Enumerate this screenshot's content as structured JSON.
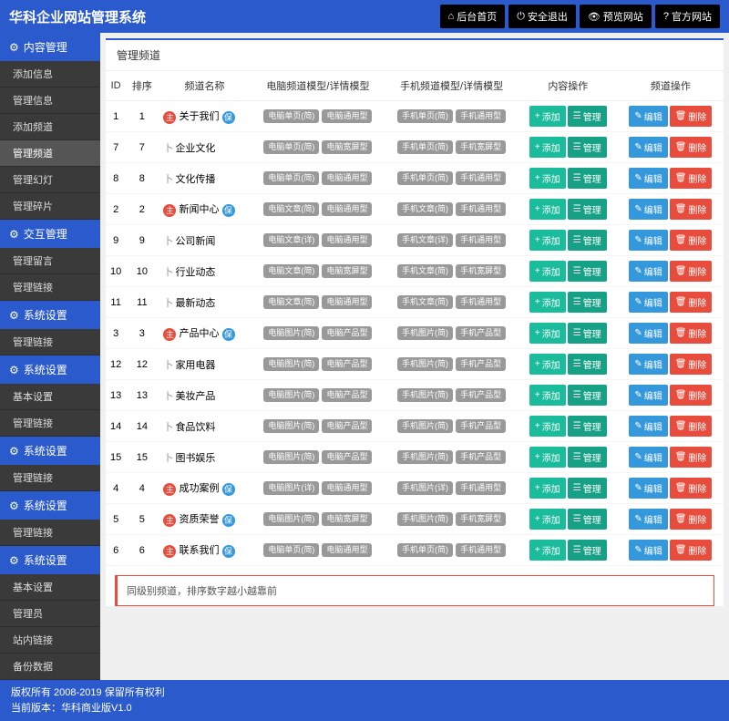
{
  "header": {
    "title": "华科企业网站管理系统",
    "nav": [
      "后台首页",
      "安全退出",
      "预览网站",
      "官方网站"
    ],
    "nav_icons": [
      "⌂",
      "⏻",
      "👁",
      "?"
    ]
  },
  "sidebar": [
    {
      "type": "section",
      "label": "内容管理"
    },
    {
      "type": "item",
      "label": "添加信息"
    },
    {
      "type": "item",
      "label": "管理信息"
    },
    {
      "type": "item",
      "label": "添加频道"
    },
    {
      "type": "item",
      "label": "管理频道",
      "active": true
    },
    {
      "type": "item",
      "label": "管理幻灯"
    },
    {
      "type": "item",
      "label": "管理碎片"
    },
    {
      "type": "section",
      "label": "交互管理"
    },
    {
      "type": "item",
      "label": "管理留言"
    },
    {
      "type": "item",
      "label": "管理链接"
    },
    {
      "type": "section",
      "label": "系统设置"
    },
    {
      "type": "item",
      "label": "管理链接"
    },
    {
      "type": "section",
      "label": "系统设置"
    },
    {
      "type": "item",
      "label": "基本设置"
    },
    {
      "type": "item",
      "label": "管理链接"
    },
    {
      "type": "section",
      "label": "系统设置"
    },
    {
      "type": "item",
      "label": "管理链接"
    },
    {
      "type": "section",
      "label": "系统设置"
    },
    {
      "type": "item",
      "label": "管理链接"
    },
    {
      "type": "section",
      "label": "系统设置"
    },
    {
      "type": "item",
      "label": "基本设置"
    },
    {
      "type": "item",
      "label": "管理员"
    },
    {
      "type": "item",
      "label": "站内链接"
    },
    {
      "type": "item",
      "label": "备份数据"
    }
  ],
  "panel": {
    "title": "管理频道"
  },
  "table": {
    "columns": [
      "ID",
      "排序",
      "频道名称",
      "电脑频道模型/详情模型",
      "手机频道模型/详情模型",
      "内容操作",
      "频道操作"
    ],
    "rows": [
      {
        "id": 1,
        "sort": 1,
        "main": true,
        "name": "关于我们",
        "suffix": true,
        "pc": [
          "电脑单页(简)",
          "电脑通用型"
        ],
        "mb": [
          "手机单页(简)",
          "手机通用型"
        ]
      },
      {
        "id": 7,
        "sort": 7,
        "main": false,
        "name": "企业文化",
        "pc": [
          "电脑单页(简)",
          "电脑宽屏型"
        ],
        "mb": [
          "手机单页(简)",
          "手机宽屏型"
        ]
      },
      {
        "id": 8,
        "sort": 8,
        "main": false,
        "name": "文化传播",
        "pc": [
          "电脑单页(简)",
          "电脑通用型"
        ],
        "mb": [
          "手机单页(简)",
          "手机通用型"
        ]
      },
      {
        "id": 2,
        "sort": 2,
        "main": true,
        "name": "新闻中心",
        "suffix": true,
        "pc": [
          "电脑文章(简)",
          "电脑通用型"
        ],
        "mb": [
          "手机文章(简)",
          "手机通用型"
        ]
      },
      {
        "id": 9,
        "sort": 9,
        "main": false,
        "name": "公司新闻",
        "pc": [
          "电脑文章(详)",
          "电脑通用型"
        ],
        "mb": [
          "手机文章(详)",
          "手机通用型"
        ]
      },
      {
        "id": 10,
        "sort": 10,
        "main": false,
        "name": "行业动态",
        "pc": [
          "电脑文章(简)",
          "电脑宽屏型"
        ],
        "mb": [
          "手机文章(简)",
          "手机宽屏型"
        ]
      },
      {
        "id": 11,
        "sort": 11,
        "main": false,
        "name": "最新动态",
        "pc": [
          "电脑文章(简)",
          "电脑通用型"
        ],
        "mb": [
          "手机文章(简)",
          "手机通用型"
        ]
      },
      {
        "id": 3,
        "sort": 3,
        "main": true,
        "name": "产品中心",
        "suffix": true,
        "pc": [
          "电脑图片(简)",
          "电脑产品型"
        ],
        "mb": [
          "手机图片(简)",
          "手机产品型"
        ]
      },
      {
        "id": 12,
        "sort": 12,
        "main": false,
        "name": "家用电器",
        "pc": [
          "电脑图片(简)",
          "电脑产品型"
        ],
        "mb": [
          "手机图片(简)",
          "手机产品型"
        ]
      },
      {
        "id": 13,
        "sort": 13,
        "main": false,
        "name": "美妆产品",
        "pc": [
          "电脑图片(简)",
          "电脑产品型"
        ],
        "mb": [
          "手机图片(简)",
          "手机产品型"
        ]
      },
      {
        "id": 14,
        "sort": 14,
        "main": false,
        "name": "食品饮料",
        "pc": [
          "电脑图片(简)",
          "电脑产品型"
        ],
        "mb": [
          "手机图片(简)",
          "手机产品型"
        ]
      },
      {
        "id": 15,
        "sort": 15,
        "main": false,
        "name": "图书娱乐",
        "pc": [
          "电脑图片(简)",
          "电脑产品型"
        ],
        "mb": [
          "手机图片(简)",
          "手机产品型"
        ]
      },
      {
        "id": 4,
        "sort": 4,
        "main": true,
        "name": "成功案例",
        "suffix": true,
        "pc": [
          "电脑图片(详)",
          "电脑通用型"
        ],
        "mb": [
          "手机图片(详)",
          "手机通用型"
        ]
      },
      {
        "id": 5,
        "sort": 5,
        "main": true,
        "name": "资质荣誉",
        "suffix": true,
        "pc": [
          "电脑图片(简)",
          "电脑宽屏型"
        ],
        "mb": [
          "手机图片(简)",
          "手机宽屏型"
        ]
      },
      {
        "id": 6,
        "sort": 6,
        "main": true,
        "name": "联系我们",
        "suffix": true,
        "pc": [
          "电脑单页(简)",
          "电脑通用型"
        ],
        "mb": [
          "手机单页(简)",
          "手机通用型"
        ]
      }
    ],
    "actions1": {
      "add": "添加",
      "manage": "管理"
    },
    "actions2": {
      "edit": "编辑",
      "delete": "删除"
    },
    "badges": {
      "main": "主",
      "sub": "卜",
      "suffix": "保"
    }
  },
  "note": "同级别频道，排序数字越小越靠前",
  "footer": {
    "line1": "版权所有 2008-2019 保留所有权利",
    "line2": "当前版本：华科商业版V1.0"
  }
}
